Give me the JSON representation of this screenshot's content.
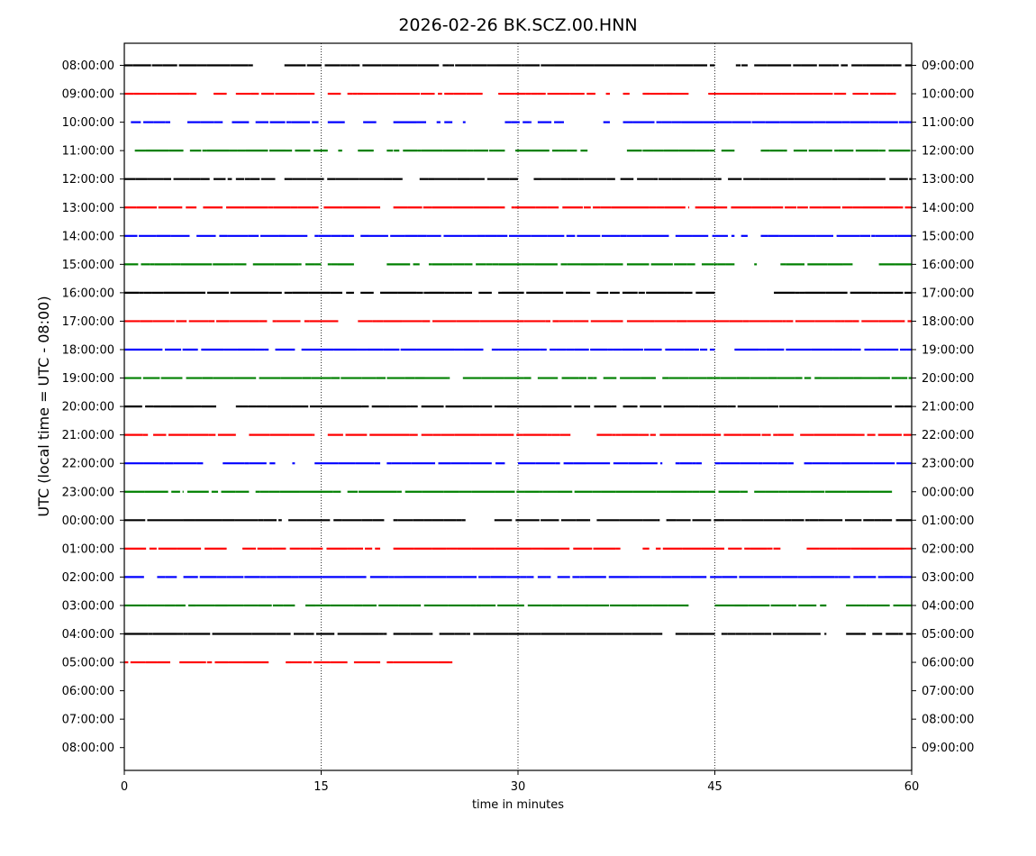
{
  "chart_data": {
    "type": "scatter",
    "title": "2026-02-26 BK.SCZ.00.HNN",
    "xlabel": "time in minutes",
    "ylabel": "UTC (local time = UTC - 08:00)",
    "xlim": [
      0,
      60
    ],
    "x_ticks": [
      "0",
      "15",
      "30",
      "45",
      "60"
    ],
    "x_tick_values": [
      0,
      15,
      30,
      45,
      60
    ],
    "grid": "vertical dotted lines at 15, 30, 45",
    "left_tick_labels": [
      "08:00:00",
      "09:00:00",
      "10:00:00",
      "11:00:00",
      "12:00:00",
      "13:00:00",
      "14:00:00",
      "15:00:00",
      "16:00:00",
      "17:00:00",
      "18:00:00",
      "19:00:00",
      "20:00:00",
      "21:00:00",
      "22:00:00",
      "23:00:00",
      "00:00:00",
      "01:00:00",
      "02:00:00",
      "03:00:00",
      "04:00:00",
      "05:00:00",
      "06:00:00",
      "07:00:00",
      "08:00:00"
    ],
    "right_tick_labels": [
      "09:00:00",
      "10:00:00",
      "11:00:00",
      "12:00:00",
      "13:00:00",
      "14:00:00",
      "15:00:00",
      "16:00:00",
      "17:00:00",
      "18:00:00",
      "19:00:00",
      "20:00:00",
      "21:00:00",
      "22:00:00",
      "23:00:00",
      "00:00:00",
      "01:00:00",
      "02:00:00",
      "03:00:00",
      "04:00:00",
      "05:00:00",
      "06:00:00",
      "07:00:00",
      "08:00:00",
      "09:00:00"
    ],
    "color_cycle": [
      "#000000",
      "#ff0000",
      "#0000ff",
      "#008000"
    ],
    "series": [
      {
        "hour": "08:00:00",
        "color": "#000000",
        "segments": [
          [
            0.0,
            9.8
          ],
          [
            12.2,
            45.0
          ],
          [
            46.6,
            47.5
          ],
          [
            48.0,
            60.0
          ]
        ]
      },
      {
        "hour": "09:00:00",
        "color": "#ff0000",
        "segments": [
          [
            0.0,
            5.5
          ],
          [
            6.8,
            7.8
          ],
          [
            8.5,
            14.5
          ],
          [
            15.5,
            16.5
          ],
          [
            17.0,
            27.3
          ],
          [
            28.5,
            35.9
          ],
          [
            36.7,
            37.0
          ],
          [
            38.0,
            38.5
          ],
          [
            39.5,
            43.0
          ],
          [
            44.5,
            55.0
          ],
          [
            55.5,
            58.8
          ]
        ]
      },
      {
        "hour": "10:00:00",
        "color": "#0000ff",
        "segments": [
          [
            0.5,
            3.5
          ],
          [
            4.8,
            7.5
          ],
          [
            8.2,
            9.5
          ],
          [
            10.0,
            14.8
          ],
          [
            15.5,
            16.8
          ],
          [
            18.2,
            19.2
          ],
          [
            20.5,
            23.0
          ],
          [
            23.8,
            25.0
          ],
          [
            25.8,
            26.0
          ],
          [
            29.0,
            31.0
          ],
          [
            31.5,
            33.5
          ],
          [
            36.5,
            37.0
          ],
          [
            38.0,
            60.0
          ]
        ]
      },
      {
        "hour": "11:00:00",
        "color": "#008000",
        "segments": [
          [
            0.8,
            4.5
          ],
          [
            5.0,
            15.5
          ],
          [
            16.3,
            16.6
          ],
          [
            17.8,
            19.0
          ],
          [
            20.0,
            29.0
          ],
          [
            29.8,
            35.3
          ],
          [
            38.3,
            45.0
          ],
          [
            45.5,
            46.5
          ],
          [
            48.5,
            50.5
          ],
          [
            51.0,
            60.0
          ]
        ]
      },
      {
        "hour": "12:00:00",
        "color": "#000000",
        "segments": [
          [
            0.0,
            6.5
          ],
          [
            6.8,
            8.2
          ],
          [
            8.5,
            11.5
          ],
          [
            12.2,
            21.2
          ],
          [
            22.5,
            30.0
          ],
          [
            31.2,
            37.5
          ],
          [
            37.8,
            45.5
          ],
          [
            46.0,
            58.0
          ],
          [
            58.3,
            60.0
          ]
        ]
      },
      {
        "hour": "13:00:00",
        "color": "#ff0000",
        "segments": [
          [
            0.0,
            5.5
          ],
          [
            6.0,
            14.8
          ],
          [
            15.2,
            19.5
          ],
          [
            20.5,
            29.0
          ],
          [
            29.5,
            43.0
          ],
          [
            43.5,
            60.0
          ]
        ]
      },
      {
        "hour": "14:00:00",
        "color": "#0000ff",
        "segments": [
          [
            0.0,
            5.0
          ],
          [
            5.5,
            14.0
          ],
          [
            14.5,
            17.5
          ],
          [
            18.0,
            41.5
          ],
          [
            42.0,
            44.5
          ],
          [
            44.8,
            46.5
          ],
          [
            47.0,
            47.5
          ],
          [
            48.5,
            60.0
          ]
        ]
      },
      {
        "hour": "15:00:00",
        "color": "#008000",
        "segments": [
          [
            0.0,
            9.3
          ],
          [
            9.8,
            13.5
          ],
          [
            13.8,
            15.0
          ],
          [
            15.5,
            17.5
          ],
          [
            20.0,
            22.5
          ],
          [
            23.2,
            38.0
          ],
          [
            38.3,
            43.5
          ],
          [
            44.0,
            46.5
          ],
          [
            48.0,
            48.2
          ],
          [
            50.0,
            55.5
          ],
          [
            57.5,
            60.0
          ]
        ]
      },
      {
        "hour": "16:00:00",
        "color": "#000000",
        "segments": [
          [
            0.0,
            12.0
          ],
          [
            12.2,
            17.5
          ],
          [
            18.0,
            19.0
          ],
          [
            19.5,
            26.5
          ],
          [
            27.0,
            28.0
          ],
          [
            28.5,
            35.5
          ],
          [
            36.0,
            45.0
          ],
          [
            49.5,
            60.0
          ]
        ]
      },
      {
        "hour": "17:00:00",
        "color": "#ff0000",
        "segments": [
          [
            0.0,
            11.0
          ],
          [
            11.3,
            16.3
          ],
          [
            17.8,
            38.0
          ],
          [
            38.3,
            60.0
          ]
        ]
      },
      {
        "hour": "18:00:00",
        "color": "#0000ff",
        "segments": [
          [
            0.0,
            11.0
          ],
          [
            11.5,
            13.0
          ],
          [
            13.5,
            27.5
          ],
          [
            28.0,
            45.0
          ],
          [
            46.5,
            60.0
          ]
        ]
      },
      {
        "hour": "19:00:00",
        "color": "#008000",
        "segments": [
          [
            0.0,
            24.8
          ],
          [
            25.8,
            31.0
          ],
          [
            31.5,
            36.0
          ],
          [
            36.5,
            40.5
          ],
          [
            41.0,
            60.0
          ]
        ]
      },
      {
        "hour": "20:00:00",
        "color": "#000000",
        "segments": [
          [
            0.0,
            7.0
          ],
          [
            8.5,
            35.5
          ],
          [
            35.8,
            37.5
          ],
          [
            38.0,
            60.0
          ]
        ]
      },
      {
        "hour": "21:00:00",
        "color": "#ff0000",
        "segments": [
          [
            0.0,
            1.8
          ],
          [
            2.2,
            8.5
          ],
          [
            9.5,
            14.5
          ],
          [
            15.5,
            34.0
          ],
          [
            36.0,
            40.5
          ],
          [
            40.8,
            51.0
          ],
          [
            51.5,
            60.0
          ]
        ]
      },
      {
        "hour": "22:00:00",
        "color": "#0000ff",
        "segments": [
          [
            0.0,
            6.0
          ],
          [
            7.5,
            11.5
          ],
          [
            12.8,
            13.0
          ],
          [
            14.5,
            19.5
          ],
          [
            20.0,
            29.0
          ],
          [
            30.0,
            41.0
          ],
          [
            42.0,
            44.0
          ],
          [
            45.0,
            51.0
          ],
          [
            51.8,
            60.0
          ]
        ]
      },
      {
        "hour": "23:00:00",
        "color": "#008000",
        "segments": [
          [
            0.0,
            4.5
          ],
          [
            4.8,
            9.5
          ],
          [
            10.0,
            16.5
          ],
          [
            17.0,
            47.5
          ],
          [
            48.0,
            58.5
          ]
        ]
      },
      {
        "hour": "00:00:00",
        "color": "#000000",
        "segments": [
          [
            0.0,
            12.0
          ],
          [
            12.5,
            19.8
          ],
          [
            20.5,
            26.0
          ],
          [
            28.2,
            35.5
          ],
          [
            36.0,
            40.8
          ],
          [
            41.3,
            58.5
          ],
          [
            58.8,
            60.0
          ]
        ]
      },
      {
        "hour": "01:00:00",
        "color": "#ff0000",
        "segments": [
          [
            0.0,
            8.0
          ],
          [
            9.0,
            19.5
          ],
          [
            20.5,
            37.8
          ],
          [
            39.5,
            40.0
          ],
          [
            40.5,
            50.0
          ],
          [
            52.0,
            60.0
          ]
        ]
      },
      {
        "hour": "02:00:00",
        "color": "#0000ff",
        "segments": [
          [
            0.0,
            1.5
          ],
          [
            2.5,
            4.0
          ],
          [
            4.5,
            31.2
          ],
          [
            31.5,
            32.5
          ],
          [
            33.0,
            60.0
          ]
        ]
      },
      {
        "hour": "03:00:00",
        "color": "#008000",
        "segments": [
          [
            0.0,
            13.0
          ],
          [
            13.8,
            43.0
          ],
          [
            45.0,
            53.5
          ],
          [
            55.0,
            60.0
          ]
        ]
      },
      {
        "hour": "04:00:00",
        "color": "#000000",
        "segments": [
          [
            0.0,
            20.0
          ],
          [
            20.5,
            23.5
          ],
          [
            24.0,
            41.0
          ],
          [
            42.0,
            45.0
          ],
          [
            45.5,
            53.5
          ],
          [
            55.0,
            56.5
          ],
          [
            57.0,
            60.0
          ]
        ]
      },
      {
        "hour": "05:00:00",
        "color": "#ff0000",
        "segments": [
          [
            0.0,
            3.5
          ],
          [
            4.2,
            11.0
          ],
          [
            12.3,
            17.0
          ],
          [
            17.5,
            19.5
          ],
          [
            20.0,
            25.0
          ]
        ]
      }
    ]
  }
}
